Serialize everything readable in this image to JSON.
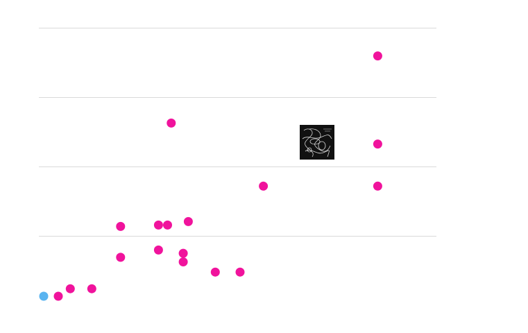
{
  "chart_data": {
    "type": "scatter",
    "title": "",
    "xlabel": "",
    "ylabel": "",
    "grid": "horizontal",
    "xlim": [
      0,
      1
    ],
    "ylim": [
      0,
      1
    ],
    "yticks": [
      0.25,
      0.5,
      0.75,
      1.0
    ],
    "points": [
      {
        "x": 0.0,
        "y": 0.0,
        "color": "#5ab4f0"
      },
      {
        "x": 0.04,
        "y": 0.0,
        "color": "#f0139c"
      },
      {
        "x": 0.073,
        "y": 0.028,
        "color": "#f0139c"
      },
      {
        "x": 0.132,
        "y": 0.028,
        "color": "#f0139c"
      },
      {
        "x": 0.211,
        "y": 0.145,
        "color": "#f0139c"
      },
      {
        "x": 0.211,
        "y": 0.26,
        "color": "#f0139c"
      },
      {
        "x": 0.315,
        "y": 0.172,
        "color": "#f0139c"
      },
      {
        "x": 0.315,
        "y": 0.265,
        "color": "#f0139c"
      },
      {
        "x": 0.34,
        "y": 0.265,
        "color": "#f0139c"
      },
      {
        "x": 0.35,
        "y": 0.645,
        "color": "#f0139c"
      },
      {
        "x": 0.383,
        "y": 0.16,
        "color": "#f0139c"
      },
      {
        "x": 0.383,
        "y": 0.128,
        "color": "#f0139c"
      },
      {
        "x": 0.397,
        "y": 0.278,
        "color": "#f0139c"
      },
      {
        "x": 0.471,
        "y": 0.09,
        "color": "#f0139c"
      },
      {
        "x": 0.539,
        "y": 0.09,
        "color": "#f0139c"
      },
      {
        "x": 0.603,
        "y": 0.41,
        "color": "#f0139c"
      },
      {
        "x": 0.917,
        "y": 0.41,
        "color": "#f0139c"
      },
      {
        "x": 0.917,
        "y": 0.567,
        "color": "#f0139c"
      },
      {
        "x": 0.917,
        "y": 0.895,
        "color": "#f0139c"
      }
    ]
  },
  "image": {
    "icon": "artwork-thumbnail"
  }
}
